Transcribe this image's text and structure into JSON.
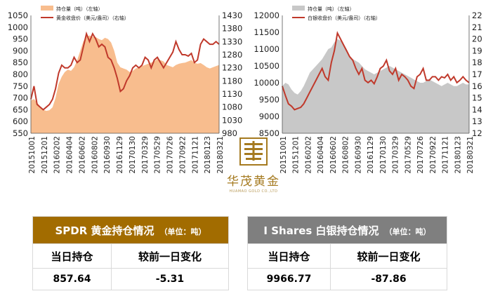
{
  "chart_data": [
    {
      "type": "area",
      "colors": {
        "area": "#f8bd8e",
        "line": "#c0392b"
      },
      "legend": {
        "position": "top-left",
        "area_label": "持仓量（吨）（左轴）",
        "line_label": "黄金收盘价（美元/盎司）（右轴）"
      },
      "x_ticks": [
        "20151001",
        "20151201",
        "20160202",
        "20160404",
        "20160602",
        "20160802",
        "20160930",
        "20161129",
        "20170130",
        "20170329",
        "20170529",
        "20170726",
        "20170922",
        "20171121",
        "20180123",
        "20180321"
      ],
      "y_left": {
        "ticks": [
          "550",
          "600",
          "650",
          "700",
          "750",
          "800",
          "850",
          "900",
          "950",
          "1000",
          "1050"
        ],
        "range": [
          550,
          1050
        ]
      },
      "y_right": {
        "ticks": [
          "980",
          "1030",
          "1080",
          "1130",
          "1180",
          "1230",
          "1280",
          "1330",
          "1380",
          "1430"
        ],
        "range": [
          980,
          1430
        ]
      },
      "x": [
        "20151001",
        "20151016",
        "20151102",
        "20151116",
        "20151201",
        "20151216",
        "20160104",
        "20160119",
        "20160202",
        "20160218",
        "20160304",
        "20160321",
        "20160404",
        "20160419",
        "20160503",
        "20160518",
        "20160602",
        "20160617",
        "20160704",
        "20160719",
        "20160802",
        "20160817",
        "20160901",
        "20160916",
        "20160930",
        "20161017",
        "20161031",
        "20161114",
        "20161129",
        "20161214",
        "20161229",
        "20170113",
        "20170130",
        "20170214",
        "20170301",
        "20170315",
        "20170329",
        "20170413",
        "20170428",
        "20170515",
        "20170529",
        "20170613",
        "20170628",
        "20170712",
        "20170726",
        "20170810",
        "20170825",
        "20170908",
        "20170922",
        "20171009",
        "20171024",
        "20171107",
        "20171121",
        "20171206",
        "20171221",
        "20180108",
        "20180123",
        "20180207",
        "20180222",
        "20180308",
        "20180321",
        "20180405"
      ],
      "holdings": [
        690,
        695,
        680,
        665,
        650,
        645,
        648,
        660,
        700,
        760,
        790,
        810,
        820,
        815,
        830,
        860,
        900,
        940,
        960,
        965,
        960,
        958,
        950,
        945,
        955,
        950,
        935,
        900,
        850,
        830,
        825,
        820,
        810,
        815,
        825,
        830,
        835,
        840,
        845,
        850,
        855,
        865,
        860,
        855,
        840,
        835,
        830,
        840,
        845,
        848,
        850,
        855,
        860,
        850,
        845,
        848,
        840,
        830,
        825,
        830,
        835,
        840
      ],
      "price": [
        1110,
        1160,
        1090,
        1080,
        1070,
        1080,
        1090,
        1110,
        1150,
        1210,
        1240,
        1230,
        1230,
        1240,
        1270,
        1250,
        1260,
        1310,
        1360,
        1330,
        1360,
        1340,
        1310,
        1320,
        1310,
        1270,
        1260,
        1230,
        1190,
        1140,
        1150,
        1180,
        1200,
        1230,
        1240,
        1230,
        1240,
        1270,
        1260,
        1230,
        1260,
        1270,
        1250,
        1230,
        1250,
        1270,
        1290,
        1330,
        1300,
        1280,
        1280,
        1275,
        1285,
        1250,
        1260,
        1320,
        1340,
        1330,
        1320,
        1320,
        1330,
        1320
      ]
    },
    {
      "type": "area",
      "colors": {
        "area": "#c8c8c8",
        "line": "#c0392b"
      },
      "legend": {
        "position": "top-left",
        "area_label": "持仓量（吨）（左轴）",
        "line_label": "白银收盘价（美元/盎司）（右轴）"
      },
      "x_ticks": [
        "20151001",
        "20151201",
        "20160202",
        "20160404",
        "20160602",
        "20160802",
        "20160930",
        "20161129",
        "20170130",
        "20170329",
        "20170529",
        "20170726",
        "20170922",
        "20171121",
        "20180123",
        "20180321"
      ],
      "y_left": {
        "ticks": [
          "8500",
          "9000",
          "9500",
          "10000",
          "10500",
          "11000",
          "11500",
          "12000"
        ],
        "range": [
          8500,
          12000
        ]
      },
      "y_right": {
        "ticks": [
          "12",
          "13",
          "14",
          "15",
          "16",
          "17",
          "18",
          "19",
          "20",
          "21",
          "22"
        ],
        "range": [
          12,
          22
        ]
      },
      "x": [
        "20151001",
        "20151016",
        "20151102",
        "20151116",
        "20151201",
        "20151216",
        "20160104",
        "20160119",
        "20160202",
        "20160218",
        "20160304",
        "20160321",
        "20160404",
        "20160419",
        "20160503",
        "20160518",
        "20160602",
        "20160617",
        "20160704",
        "20160719",
        "20160802",
        "20160817",
        "20160901",
        "20160916",
        "20160930",
        "20161017",
        "20161031",
        "20161114",
        "20161129",
        "20161214",
        "20161229",
        "20170113",
        "20170130",
        "20170214",
        "20170301",
        "20170315",
        "20170329",
        "20170413",
        "20170428",
        "20170515",
        "20170529",
        "20170613",
        "20170628",
        "20170712",
        "20170726",
        "20170810",
        "20170825",
        "20170908",
        "20170922",
        "20171009",
        "20171024",
        "20171107",
        "20171121",
        "20171206",
        "20171221",
        "20180108",
        "20180123",
        "20180207",
        "20180222",
        "20180308",
        "20180321",
        "20180405"
      ],
      "holdings": [
        9900,
        10000,
        9950,
        9800,
        9700,
        9650,
        9750,
        9900,
        10100,
        10300,
        10400,
        10500,
        10600,
        10700,
        10850,
        11000,
        11050,
        11200,
        11300,
        11250,
        11150,
        11000,
        10800,
        10700,
        10650,
        10600,
        10500,
        10400,
        10350,
        10300,
        10250,
        10300,
        10350,
        10400,
        10450,
        10500,
        10450,
        10400,
        10350,
        10300,
        10250,
        10200,
        10150,
        10100,
        10050,
        10000,
        10000,
        10050,
        10100,
        10050,
        10000,
        9950,
        9900,
        9950,
        10000,
        9950,
        9900,
        9900,
        9950,
        10000,
        9950,
        9950
      ],
      "price": [
        16.0,
        15.2,
        14.5,
        14.3,
        14.0,
        14.1,
        14.2,
        14.5,
        15.0,
        15.5,
        16.0,
        16.5,
        17.0,
        17.5,
        16.8,
        16.5,
        18.0,
        19.0,
        20.5,
        20.0,
        19.5,
        19.0,
        18.5,
        18.2,
        17.5,
        17.0,
        17.5,
        16.5,
        16.3,
        16.5,
        16.2,
        16.8,
        17.5,
        17.7,
        18.2,
        17.3,
        17.0,
        17.5,
        16.5,
        17.0,
        16.8,
        16.5,
        16.0,
        15.8,
        16.8,
        17.0,
        17.5,
        16.5,
        16.5,
        16.8,
        16.8,
        16.5,
        16.8,
        16.7,
        17.0,
        16.5,
        16.8,
        16.3,
        16.5,
        16.8,
        16.5,
        16.3
      ]
    }
  ],
  "tables": {
    "gold": {
      "title": "SPDR 黄金持仓情况",
      "unit": "（单位：吨）",
      "col1": "当日持仓",
      "col2": "较前一日变化",
      "holding": "857.64",
      "change": "-5.31"
    },
    "silver": {
      "title": "I Shares 白银持仓情况",
      "unit": "（单位：吨）",
      "col1": "当日持仓",
      "col2": "较前一日变化",
      "holding": "9966.77",
      "change": "-87.86"
    }
  },
  "logo": {
    "name_cn": "华茂黄金",
    "name_en": "HUAMAO GOLD CO.,LTD"
  }
}
